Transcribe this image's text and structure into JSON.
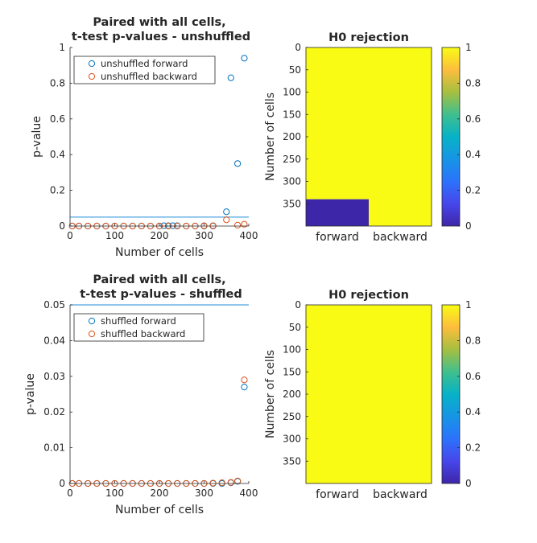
{
  "figure": {
    "background": "#ffffff"
  },
  "colors": {
    "forward": "#0072BD",
    "backward": "#D95319",
    "threshold_line": "#4DA3E0",
    "axis": "#262626",
    "colormap_low": "#3E26A8",
    "colormap_high": "#F9FB15"
  },
  "chart_data": [
    {
      "type": "scatter",
      "title": [
        "Paired with all cells,",
        "t-test p-values - unshuffled"
      ],
      "xlabel": "Number of cells",
      "ylabel": "p-value",
      "xlim": [
        0,
        400
      ],
      "ylim": [
        0,
        1
      ],
      "xticks": [
        0,
        100,
        200,
        300,
        400
      ],
      "xtick_labels": [
        "0",
        "100",
        "200",
        "300",
        "400"
      ],
      "yticks": [
        0,
        0.2,
        0.4,
        0.6,
        0.8,
        1
      ],
      "ytick_labels": [
        "0",
        "0.2",
        "0.4",
        "0.6",
        "0.8",
        "1"
      ],
      "threshold": 0.05,
      "legend": "top-left",
      "series": [
        {
          "name": "unshuffled forward",
          "color": "#0072BD",
          "x": [
            5,
            20,
            40,
            60,
            80,
            100,
            120,
            140,
            160,
            180,
            200,
            210,
            220,
            230,
            240,
            260,
            280,
            300,
            320,
            350,
            360,
            375,
            390
          ],
          "y": [
            0,
            0,
            0,
            0,
            0,
            0,
            0,
            0,
            0,
            0,
            0,
            0.002,
            0.002,
            0.002,
            0.002,
            0,
            0,
            0,
            0,
            0.08,
            0.83,
            0.35,
            0.94
          ]
        },
        {
          "name": "unshuffled backward",
          "color": "#D95319",
          "x": [
            5,
            20,
            40,
            60,
            80,
            100,
            120,
            140,
            160,
            180,
            200,
            220,
            240,
            260,
            280,
            300,
            320,
            350,
            375,
            390
          ],
          "y": [
            0,
            0,
            0,
            0,
            0,
            0,
            0,
            0,
            0,
            0,
            0,
            0,
            0,
            0,
            0,
            0.002,
            0.002,
            0.035,
            0.005,
            0.01
          ]
        }
      ]
    },
    {
      "type": "heatmap",
      "title": "H0 rejection",
      "ylabel": "Number of cells",
      "categories": [
        "forward",
        "backward"
      ],
      "ylim": [
        0,
        400
      ],
      "yticks": [
        0,
        50,
        100,
        150,
        200,
        250,
        300,
        350
      ],
      "ytick_labels": [
        "0",
        "50",
        "100",
        "150",
        "200",
        "250",
        "300",
        "350"
      ],
      "colorbar": {
        "ticks": [
          0,
          0.2,
          0.4,
          0.6,
          0.8,
          1
        ],
        "tick_labels": [
          "0",
          "0.2",
          "0.4",
          "0.6",
          "0.8",
          "1"
        ]
      },
      "cells": [
        {
          "column": "forward",
          "y_start": 0,
          "y_end": 340,
          "value": 1
        },
        {
          "column": "forward",
          "y_start": 340,
          "y_end": 400,
          "value": 0
        },
        {
          "column": "backward",
          "y_start": 0,
          "y_end": 400,
          "value": 1
        }
      ]
    },
    {
      "type": "scatter",
      "title": [
        "Paired with all cells,",
        "t-test p-values - shuffled"
      ],
      "xlabel": "Number of cells",
      "ylabel": "p-value",
      "xlim": [
        0,
        400
      ],
      "ylim": [
        0,
        0.05
      ],
      "xticks": [
        0,
        100,
        200,
        300,
        400
      ],
      "xtick_labels": [
        "0",
        "100",
        "200",
        "300",
        "400"
      ],
      "yticks": [
        0,
        0.01,
        0.02,
        0.03,
        0.04,
        0.05
      ],
      "ytick_labels": [
        "0",
        "0.01",
        "0.02",
        "0.03",
        "0.04",
        "0.05"
      ],
      "threshold": 0.05,
      "legend": "top-left",
      "series": [
        {
          "name": "shuffled forward",
          "color": "#0072BD",
          "x": [
            5,
            20,
            40,
            60,
            80,
            100,
            120,
            140,
            160,
            180,
            200,
            220,
            240,
            260,
            280,
            300,
            320,
            340,
            360,
            375,
            390
          ],
          "y": [
            0,
            0,
            0,
            0,
            0,
            0,
            0,
            0,
            0,
            0,
            0,
            0,
            0,
            0,
            0,
            0,
            0,
            0,
            0.0002,
            0.0006,
            0.027
          ]
        },
        {
          "name": "shuffled backward",
          "color": "#D95319",
          "x": [
            5,
            20,
            40,
            60,
            80,
            100,
            120,
            140,
            160,
            180,
            200,
            220,
            240,
            260,
            280,
            300,
            320,
            340,
            360,
            375,
            390
          ],
          "y": [
            0,
            0,
            0,
            0,
            0,
            0,
            0,
            0,
            0,
            0,
            0,
            0,
            0,
            0,
            0,
            0,
            0.0001,
            0.0002,
            0.0003,
            0.0007,
            0.029
          ]
        }
      ]
    },
    {
      "type": "heatmap",
      "title": "H0 rejection",
      "ylabel": "Number of cells",
      "categories": [
        "forward",
        "backward"
      ],
      "ylim": [
        0,
        400
      ],
      "yticks": [
        0,
        50,
        100,
        150,
        200,
        250,
        300,
        350
      ],
      "ytick_labels": [
        "0",
        "50",
        "100",
        "150",
        "200",
        "250",
        "300",
        "350"
      ],
      "colorbar": {
        "ticks": [
          0,
          0.2,
          0.4,
          0.6,
          0.8,
          1
        ],
        "tick_labels": [
          "0",
          "0.2",
          "0.4",
          "0.6",
          "0.8",
          "1"
        ]
      },
      "cells": [
        {
          "column": "forward",
          "y_start": 0,
          "y_end": 400,
          "value": 1
        },
        {
          "column": "backward",
          "y_start": 0,
          "y_end": 400,
          "value": 1
        }
      ]
    }
  ]
}
